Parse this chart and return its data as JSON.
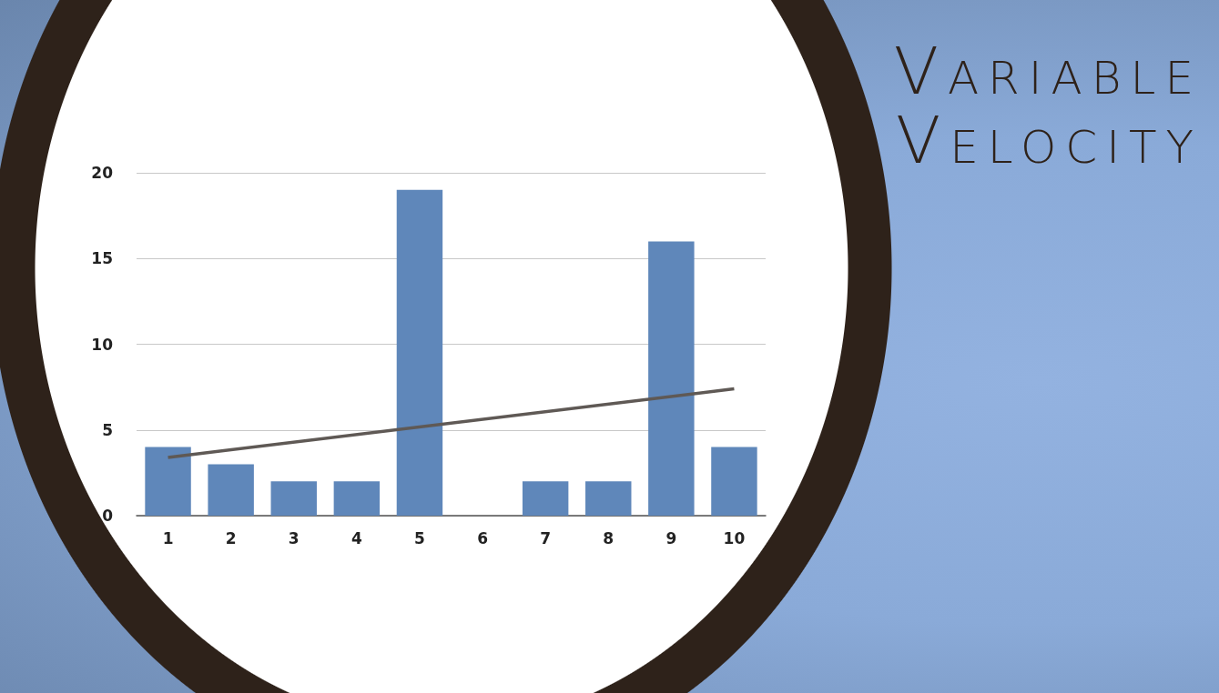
{
  "chart_data": {
    "type": "bar",
    "title": "Variable Velocity",
    "categories": [
      "1",
      "2",
      "3",
      "4",
      "5",
      "6",
      "7",
      "8",
      "9",
      "10"
    ],
    "series": [
      {
        "color": "#5f87ba",
        "values": [
          4,
          3,
          2,
          2,
          19,
          0,
          2,
          2,
          16,
          4
        ]
      },
      {
        "type": "line",
        "color": "#5f5955",
        "x": [
          "1",
          "10"
        ],
        "values": [
          3.4,
          7.4
        ]
      }
    ],
    "ylim": [
      0,
      20
    ],
    "yticks": [
      0,
      5,
      10,
      15,
      20
    ],
    "grid": "y",
    "marker": "none",
    "line_style": "solid"
  }
}
